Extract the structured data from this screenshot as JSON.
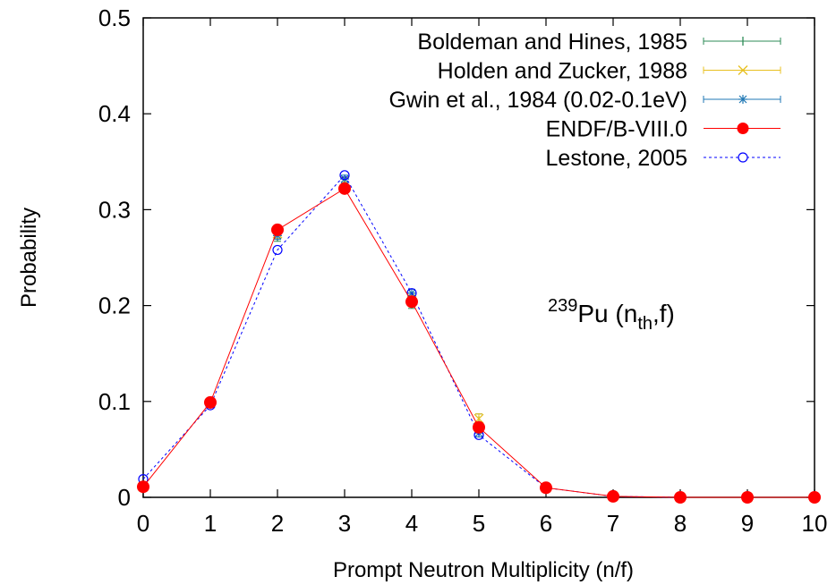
{
  "chart_data": {
    "type": "line",
    "title": "",
    "xlabel": "Prompt Neutron Multiplicity (n/f)",
    "ylabel": "Probability",
    "xlim": [
      0,
      10
    ],
    "ylim": [
      0,
      0.5
    ],
    "xticks": [
      "0",
      "1",
      "2",
      "3",
      "4",
      "5",
      "6",
      "7",
      "8",
      "9",
      "10"
    ],
    "yticks": [
      "0",
      "0.1",
      "0.2",
      "0.3",
      "0.4",
      "0.5"
    ],
    "grid": false,
    "legend_position": "top-right",
    "annotation": {
      "sup": "239",
      "main": "Pu (n",
      "sub": "th",
      "tail": ",f)"
    },
    "series": [
      {
        "name": "Boldeman and Hines, 1985",
        "color": "#2e8b57",
        "style": "errorbar",
        "x": [
          0,
          1,
          2,
          3,
          4,
          5,
          6,
          7,
          8,
          9
        ],
        "y": [
          0.011,
          0.098,
          0.272,
          0.33,
          0.205,
          0.08,
          0.01,
          0.001,
          0.0,
          0.0
        ],
        "err": [
          0.002,
          0.004,
          0.005,
          0.004,
          0.008,
          0.007,
          0.002,
          0.0,
          0.0,
          0.0
        ]
      },
      {
        "name": "Holden and Zucker, 1988",
        "color": "#e8c020",
        "style": "x-errorbar",
        "x": [
          0,
          1,
          2,
          3,
          4,
          5,
          6,
          7,
          8,
          9
        ],
        "y": [
          0.011,
          0.098,
          0.275,
          0.33,
          0.205,
          0.082,
          0.01,
          0.001,
          0.0,
          0.0
        ],
        "err": [
          0.002,
          0.004,
          0.005,
          0.004,
          0.006,
          0.005,
          0.002,
          0.0,
          0.0,
          0.0
        ]
      },
      {
        "name": "Gwin et al., 1984 (0.02-0.1eV)",
        "color": "#1f77b4",
        "style": "star-errorbar",
        "x": [
          0,
          1,
          2,
          3,
          4,
          5,
          6,
          7,
          8,
          9
        ],
        "y": [
          0.011,
          0.097,
          0.273,
          0.332,
          0.213,
          0.067,
          0.01,
          0.001,
          0.0,
          0.0
        ],
        "err": [
          0.002,
          0.003,
          0.004,
          0.004,
          0.004,
          0.004,
          0.002,
          0.0,
          0.0,
          0.0
        ]
      },
      {
        "name": "ENDF/B-VIII.0",
        "color": "#ff0000",
        "style": "line-filled-circle",
        "x": [
          0,
          1,
          2,
          3,
          4,
          5,
          6,
          7,
          8,
          9,
          10
        ],
        "y": [
          0.011,
          0.099,
          0.279,
          0.322,
          0.204,
          0.073,
          0.01,
          0.001,
          0.0,
          0.0,
          0.0
        ]
      },
      {
        "name": "Lestone, 2005",
        "color": "#0000ff",
        "style": "dashed-open-circle",
        "x": [
          0,
          1,
          2,
          3,
          4,
          5,
          6,
          7,
          8,
          9
        ],
        "y": [
          0.019,
          0.096,
          0.258,
          0.336,
          0.213,
          0.065,
          0.01,
          0.001,
          0.0,
          0.0
        ]
      }
    ]
  }
}
